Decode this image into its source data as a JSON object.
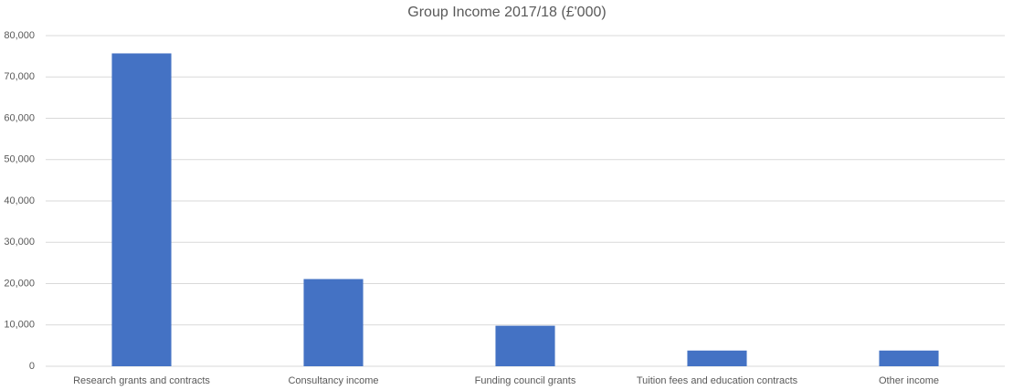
{
  "chart_data": {
    "type": "bar",
    "title": "Group Income 2017/18 (£'000)",
    "categories": [
      "Research grants and contracts",
      "Consultancy income",
      "Funding council grants",
      "Tuition fees and education contracts",
      "Other income"
    ],
    "values": [
      75700,
      21100,
      9800,
      3800,
      3800
    ],
    "color": "#4472c4",
    "ylim": [
      0,
      80000
    ],
    "yticks": [
      0,
      {
        "value": 10000,
        "label": "10,000"
      },
      {
        "value": 20000,
        "label": "20,000"
      },
      {
        "value": 30000,
        "label": "30,000"
      },
      {
        "value": 40000,
        "label": "40,000"
      },
      {
        "value": 50000,
        "label": "50,000"
      },
      {
        "value": 60000,
        "label": "60,000"
      },
      {
        "value": 70000,
        "label": "70,000"
      },
      {
        "value": 80000,
        "label": "80,000"
      }
    ],
    "grid": true
  }
}
